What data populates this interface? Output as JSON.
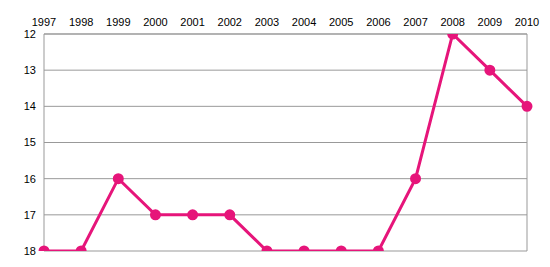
{
  "chart_data": {
    "type": "line",
    "categories": [
      "1997",
      "1998",
      "1999",
      "2000",
      "2001",
      "2002",
      "2003",
      "2004",
      "2005",
      "2006",
      "2007",
      "2008",
      "2009",
      "2010"
    ],
    "values": [
      18,
      18,
      16,
      17,
      17,
      17,
      18,
      18,
      18,
      18,
      16,
      12,
      13,
      14
    ],
    "color": "#e6157a",
    "ylim": [
      18,
      12
    ],
    "yticks": [
      12,
      13,
      14,
      15,
      16,
      17,
      18
    ],
    "grid": true,
    "marker": "circle",
    "line_style": "solid"
  }
}
